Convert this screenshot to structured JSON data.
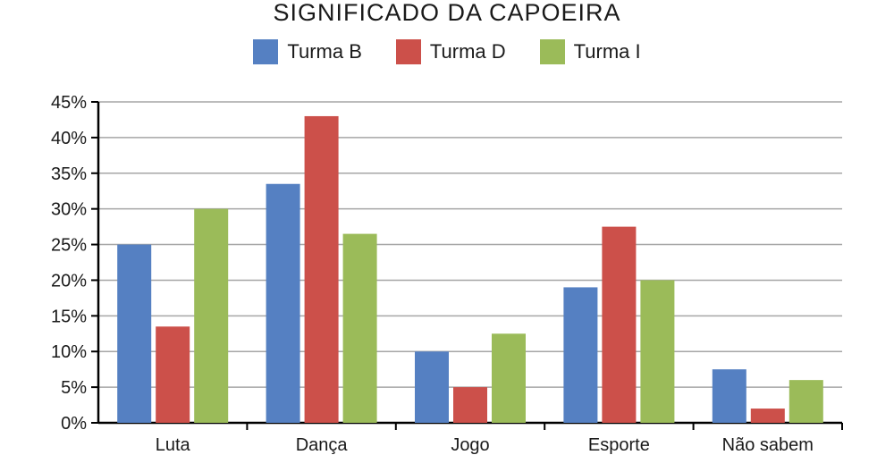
{
  "chart_data": {
    "type": "bar",
    "title": "SIGNIFICADO DA CAPOEIRA",
    "categories": [
      "Luta",
      "Dança",
      "Jogo",
      "Esporte",
      "Não sabem"
    ],
    "series": [
      {
        "name": "Turma B",
        "color": "#5580c2",
        "values": [
          25,
          33.5,
          10,
          19,
          7.5
        ]
      },
      {
        "name": "Turma D",
        "color": "#cc504a",
        "values": [
          13.5,
          43,
          5,
          27.5,
          2
        ]
      },
      {
        "name": "Turma I",
        "color": "#9bbb59",
        "values": [
          30,
          26.5,
          12.5,
          20,
          6
        ]
      }
    ],
    "yticks": [
      "0%",
      "5%",
      "10%",
      "15%",
      "20%",
      "25%",
      "30%",
      "35%",
      "40%",
      "45%"
    ],
    "ylim": [
      0,
      45
    ],
    "xlabel": "",
    "ylabel": "",
    "grid": true,
    "legend_position": "top"
  }
}
